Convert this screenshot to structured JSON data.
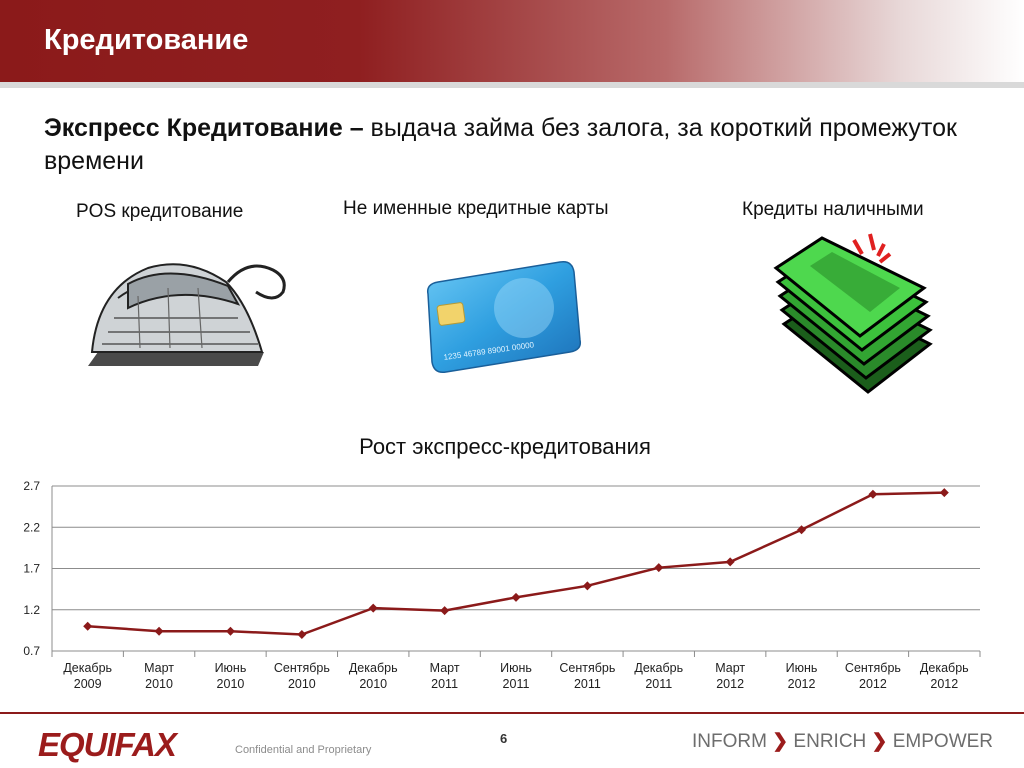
{
  "header": {
    "title": "Кредитование"
  },
  "intro": {
    "bold_text": "Экспресс Кредитование –",
    "rest_text": " выдача займа без залога, за короткий промежуток времени"
  },
  "columns": [
    {
      "label": "POS кредитование",
      "icon": "iron-icon"
    },
    {
      "label": "Не именные кредитные карты",
      "icon": "credit-card-icon",
      "card_number": "1235  46789  89001  00000"
    },
    {
      "label": "Кредиты наличными",
      "icon": "money-stack-icon"
    }
  ],
  "chart_data": {
    "type": "line",
    "title": "Рост экспресс-кредитования",
    "categories": [
      "Декабрь 2009",
      "Март 2010",
      "Июнь 2010",
      "Сентябрь 2010",
      "Декабрь 2010",
      "Март 2011",
      "Июнь 2011",
      "Сентябрь 2011",
      "Декабрь 2011",
      "Март 2012",
      "Июнь 2012",
      "Сентябрь 2012",
      "Декабрь 2012"
    ],
    "values": [
      1.0,
      0.94,
      0.94,
      0.9,
      1.22,
      1.19,
      1.35,
      1.49,
      1.71,
      1.78,
      2.17,
      2.6,
      2.62
    ],
    "ylim": [
      0.7,
      2.7
    ],
    "yticks": [
      "2.7",
      "2.2",
      "1.7",
      "1.2",
      "0.7"
    ],
    "grid": true,
    "line_color": "#8b1a1a"
  },
  "footer": {
    "logo": "EQUIFAX",
    "confidential": "Confidential and Proprietary",
    "page": "6",
    "slogan": [
      "INFORM",
      "ENRICH",
      "EMPOWER"
    ],
    "slogan_separator": "❯"
  }
}
